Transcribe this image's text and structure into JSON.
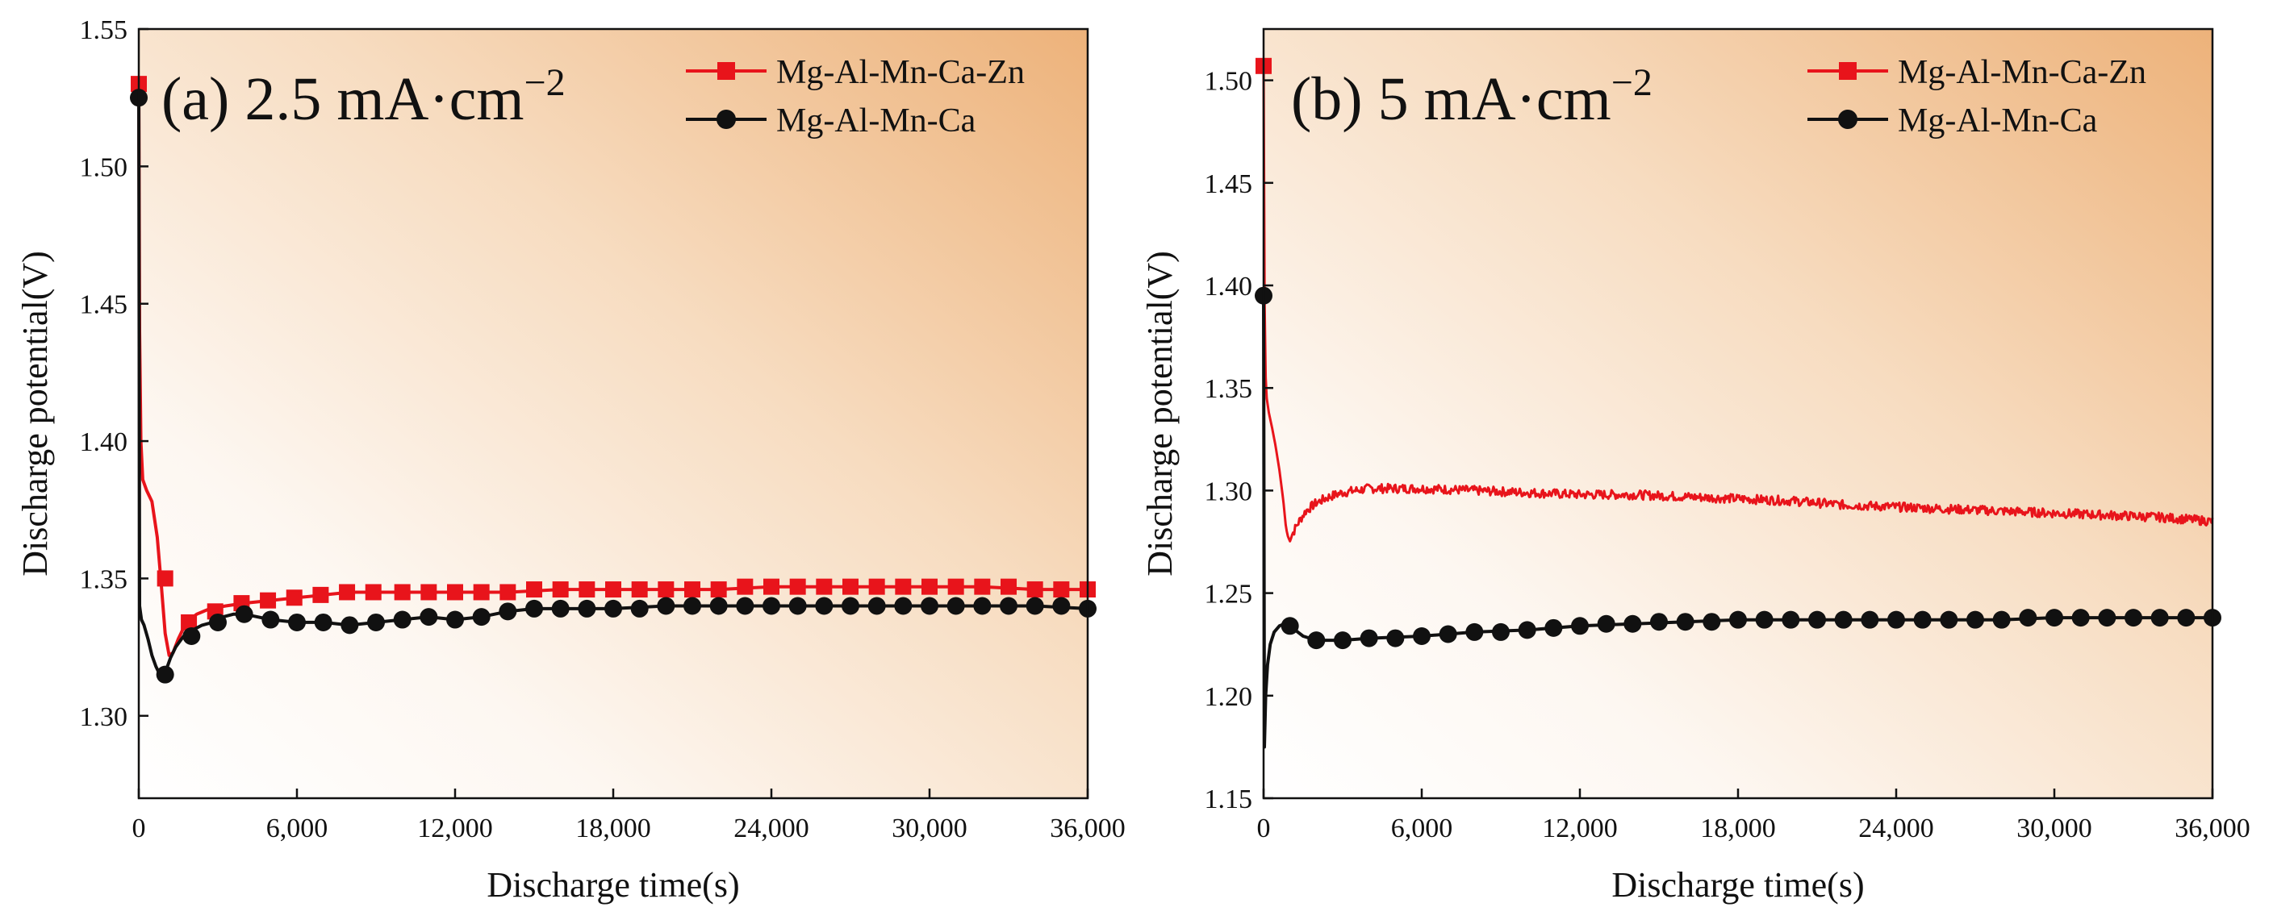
{
  "chart_data": [
    {
      "type": "line",
      "title": "(a)  2.5 mA·cm",
      "title_sup": "−2",
      "xlabel": "Discharge time(s)",
      "ylabel": "Discharge potential(V)",
      "xlim": [
        0,
        36000
      ],
      "ylim": [
        1.27,
        1.55
      ],
      "xticks": [
        0,
        6000,
        12000,
        18000,
        24000,
        30000,
        36000
      ],
      "xtick_labels": [
        "0",
        "6,000",
        "12,000",
        "18,000",
        "24,000",
        "30,000",
        "36,000"
      ],
      "yticks": [
        1.3,
        1.35,
        1.4,
        1.45,
        1.5,
        1.55
      ],
      "ytick_labels": [
        "1.30",
        "1.35",
        "1.40",
        "1.45",
        "1.50",
        "1.55"
      ],
      "legend_position": "top-right",
      "series": [
        {
          "name": "Mg-Al-Mn-Ca-Zn",
          "color": "#e8141b",
          "marker": "square",
          "x": [
            0,
            30,
            80,
            150,
            300,
            500,
            700,
            850,
            1000,
            1150,
            1300,
            1500,
            1800,
            2200,
            2700,
            3300,
            4000,
            5000,
            6000,
            7000,
            8000,
            10000,
            12000,
            14000,
            16000,
            18000,
            20000,
            22000,
            24000,
            26000,
            28000,
            30000,
            32000,
            34000,
            36000
          ],
          "y": [
            1.53,
            1.44,
            1.4,
            1.386,
            1.382,
            1.378,
            1.365,
            1.348,
            1.33,
            1.322,
            1.323,
            1.328,
            1.334,
            1.337,
            1.339,
            1.34,
            1.341,
            1.342,
            1.343,
            1.344,
            1.345,
            1.345,
            1.345,
            1.345,
            1.346,
            1.346,
            1.346,
            1.346,
            1.347,
            1.347,
            1.347,
            1.347,
            1.347,
            1.346,
            1.346
          ],
          "markers_x": [
            0,
            1000,
            1900,
            2900,
            3900,
            4900,
            5900,
            6900,
            7900,
            8900,
            10000,
            11000,
            12000,
            13000,
            14000,
            15000,
            16000,
            17000,
            18000,
            19000,
            20000,
            21000,
            22000,
            23000,
            24000,
            25000,
            26000,
            27000,
            28000,
            29000,
            30000,
            31000,
            32000,
            33000,
            34000,
            35000,
            36000
          ],
          "markers_y": [
            1.53,
            1.35,
            1.334,
            1.338,
            1.341,
            1.342,
            1.343,
            1.344,
            1.345,
            1.345,
            1.345,
            1.345,
            1.345,
            1.345,
            1.345,
            1.346,
            1.346,
            1.346,
            1.346,
            1.346,
            1.346,
            1.346,
            1.346,
            1.347,
            1.347,
            1.347,
            1.347,
            1.347,
            1.347,
            1.347,
            1.347,
            1.347,
            1.347,
            1.347,
            1.346,
            1.346,
            1.346
          ]
        },
        {
          "name": "Mg-Al-Mn-Ca",
          "color": "#111111",
          "marker": "circle",
          "x": [
            0,
            30,
            100,
            200,
            350,
            500,
            650,
            800,
            950,
            1050,
            1200,
            1400,
            1700,
            2000,
            2400,
            2800,
            3200,
            3600,
            4000,
            4500,
            5000,
            6000,
            7000,
            8000,
            9000,
            10000,
            11000,
            12000,
            13000,
            14000,
            15000,
            16000,
            18000,
            20000,
            22000,
            24000,
            26000,
            28000,
            30000,
            32000,
            34000,
            36000
          ],
          "y": [
            1.525,
            1.34,
            1.335,
            1.333,
            1.328,
            1.322,
            1.318,
            1.315,
            1.315,
            1.317,
            1.321,
            1.325,
            1.329,
            1.331,
            1.333,
            1.334,
            1.336,
            1.337,
            1.337,
            1.336,
            1.335,
            1.334,
            1.334,
            1.333,
            1.334,
            1.335,
            1.336,
            1.335,
            1.336,
            1.338,
            1.339,
            1.339,
            1.339,
            1.34,
            1.34,
            1.34,
            1.34,
            1.34,
            1.34,
            1.34,
            1.34,
            1.339
          ],
          "markers_x": [
            0,
            1000,
            2000,
            3000,
            4000,
            5000,
            6000,
            7000,
            8000,
            9000,
            10000,
            11000,
            12000,
            13000,
            14000,
            15000,
            16000,
            17000,
            18000,
            19000,
            20000,
            21000,
            22000,
            23000,
            24000,
            25000,
            26000,
            27000,
            28000,
            29000,
            30000,
            31000,
            32000,
            33000,
            34000,
            35000,
            36000
          ],
          "markers_y": [
            1.525,
            1.315,
            1.329,
            1.334,
            1.337,
            1.335,
            1.334,
            1.334,
            1.333,
            1.334,
            1.335,
            1.336,
            1.335,
            1.336,
            1.338,
            1.339,
            1.339,
            1.339,
            1.339,
            1.339,
            1.34,
            1.34,
            1.34,
            1.34,
            1.34,
            1.34,
            1.34,
            1.34,
            1.34,
            1.34,
            1.34,
            1.34,
            1.34,
            1.34,
            1.34,
            1.34,
            1.339
          ]
        }
      ]
    },
    {
      "type": "line",
      "title": "(b)  5 mA·cm",
      "title_sup": "−2",
      "xlabel": "Discharge time(s)",
      "ylabel": "Discharge potential(V)",
      "xlim": [
        0,
        36000
      ],
      "ylim": [
        1.15,
        1.525
      ],
      "xticks": [
        0,
        6000,
        12000,
        18000,
        24000,
        30000,
        36000
      ],
      "xtick_labels": [
        "0",
        "6,000",
        "12,000",
        "18,000",
        "24,000",
        "30,000",
        "36,000"
      ],
      "yticks": [
        1.15,
        1.2,
        1.25,
        1.3,
        1.35,
        1.4,
        1.45,
        1.5
      ],
      "ytick_labels": [
        "1.15",
        "1.20",
        "1.25",
        "1.30",
        "1.35",
        "1.40",
        "1.45",
        "1.50"
      ],
      "legend_position": "top-right",
      "series": [
        {
          "name": "Mg-Al-Mn-Ca-Zn",
          "color": "#e8141b",
          "marker": "square",
          "noisy": true,
          "x": [
            0,
            20,
            60,
            120,
            200,
            300,
            450,
            600,
            750,
            850,
            950,
            1100,
            1300,
            1600,
            2000,
            2500,
            3000,
            3500,
            4000,
            5000,
            6000,
            8000,
            10000,
            12000,
            14000,
            16000,
            18000,
            20000,
            22000,
            24000,
            26000,
            28000,
            30000,
            32000,
            34000,
            36000
          ],
          "y": [
            1.507,
            1.42,
            1.36,
            1.345,
            1.338,
            1.332,
            1.322,
            1.31,
            1.295,
            1.282,
            1.276,
            1.279,
            1.284,
            1.29,
            1.294,
            1.297,
            1.299,
            1.3,
            1.301,
            1.301,
            1.301,
            1.3,
            1.299,
            1.298,
            1.298,
            1.297,
            1.296,
            1.295,
            1.293,
            1.292,
            1.291,
            1.29,
            1.289,
            1.288,
            1.287,
            1.285
          ],
          "markers_x": [
            0
          ],
          "markers_y": [
            1.507
          ]
        },
        {
          "name": "Mg-Al-Mn-Ca",
          "color": "#111111",
          "marker": "circle",
          "x": [
            0,
            30,
            80,
            150,
            250,
            400,
            600,
            800,
            1000,
            1200,
            1500,
            2000,
            3000,
            4000,
            6000,
            8000,
            10000,
            12000,
            14000,
            16000,
            18000,
            20000,
            22000,
            24000,
            26000,
            28000,
            30000,
            32000,
            34000,
            36000
          ],
          "y": [
            1.395,
            1.175,
            1.2,
            1.215,
            1.225,
            1.231,
            1.234,
            1.235,
            1.234,
            1.232,
            1.229,
            1.227,
            1.227,
            1.228,
            1.229,
            1.231,
            1.232,
            1.234,
            1.235,
            1.236,
            1.237,
            1.237,
            1.237,
            1.237,
            1.237,
            1.237,
            1.238,
            1.238,
            1.238,
            1.238
          ],
          "markers_x": [
            0,
            1000,
            2000,
            3000,
            4000,
            5000,
            6000,
            7000,
            8000,
            9000,
            10000,
            11000,
            12000,
            13000,
            14000,
            15000,
            16000,
            17000,
            18000,
            19000,
            20000,
            21000,
            22000,
            23000,
            24000,
            25000,
            26000,
            27000,
            28000,
            29000,
            30000,
            31000,
            32000,
            33000,
            34000,
            35000,
            36000
          ],
          "markers_y": [
            1.395,
            1.234,
            1.227,
            1.227,
            1.228,
            1.228,
            1.229,
            1.23,
            1.231,
            1.231,
            1.232,
            1.233,
            1.234,
            1.235,
            1.235,
            1.236,
            1.236,
            1.236,
            1.237,
            1.237,
            1.237,
            1.237,
            1.237,
            1.237,
            1.237,
            1.237,
            1.237,
            1.237,
            1.237,
            1.238,
            1.238,
            1.238,
            1.238,
            1.238,
            1.238,
            1.238,
            1.238
          ]
        }
      ]
    }
  ]
}
